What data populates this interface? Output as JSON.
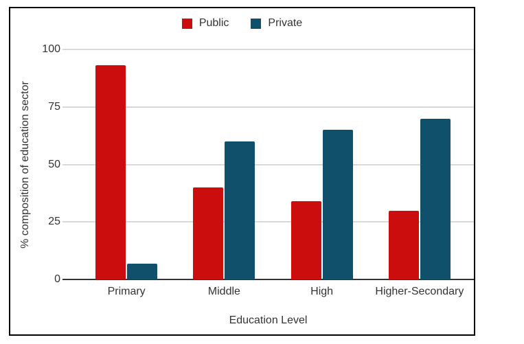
{
  "figure": {
    "background": "#ffffff",
    "border_color": "#000000"
  },
  "chart_data": {
    "type": "bar",
    "title": "",
    "xlabel": "Education Level",
    "ylabel": "% composition of education sector",
    "categories": [
      "Primary",
      "Middle",
      "High",
      "Higher-Secondary"
    ],
    "series": [
      {
        "name": "Public",
        "color": "#cc0d0d",
        "values": [
          93,
          40,
          34,
          30
        ]
      },
      {
        "name": "Private",
        "color": "#10506b",
        "values": [
          7,
          60,
          65,
          70
        ]
      }
    ],
    "ylim": [
      0,
      100
    ],
    "yticks": [
      0,
      25,
      50,
      75,
      100
    ],
    "grid": true,
    "legend_position": "top",
    "gridline_color": "#d9d9d9",
    "axis_line_color": "#333333",
    "text_color": "#333333"
  }
}
